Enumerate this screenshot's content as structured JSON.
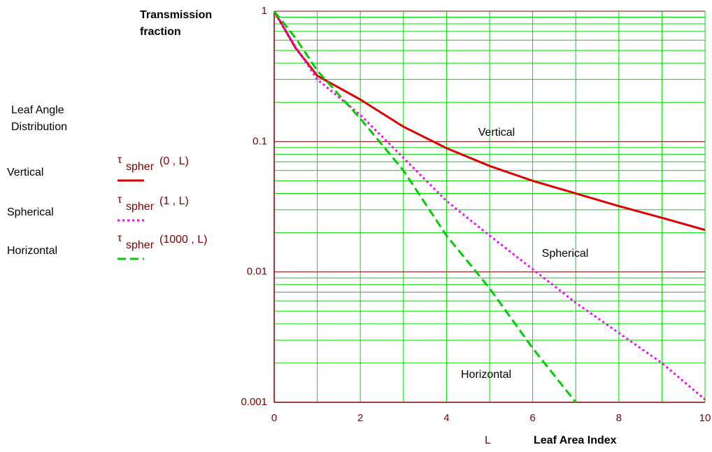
{
  "chart_data": {
    "type": "line",
    "y_label": [
      "Transmission",
      "fraction"
    ],
    "x_label": "Leaf Area Index",
    "x_variable": "L",
    "legend_title": [
      "Leaf Angle",
      "Distribution"
    ],
    "x": [
      0,
      0.5,
      1,
      2,
      3,
      4,
      5,
      6,
      7,
      8,
      9,
      10
    ],
    "series": [
      {
        "name": "Vertical",
        "color": "#e00000",
        "style": "solid",
        "legend_label": {
          "symbol": "τ",
          "sub": "spher",
          "args": "(0 , L)"
        },
        "values": [
          1,
          0.52,
          0.32,
          0.21,
          0.13,
          0.089,
          0.065,
          0.05,
          0.04,
          0.032,
          0.026,
          0.021
        ]
      },
      {
        "name": "Spherical",
        "color": "#ff00ff",
        "style": "dotted",
        "legend_label": {
          "symbol": "τ",
          "sub": "spher",
          "args": "(1 , L)"
        },
        "values": [
          1,
          0.53,
          0.3,
          0.16,
          0.075,
          0.035,
          0.019,
          0.0105,
          0.0058,
          0.0034,
          0.002,
          0.00105
        ]
      },
      {
        "name": "Horizontal",
        "color": "#00cc00",
        "style": "dashed",
        "legend_label": {
          "symbol": "τ",
          "sub": "spher",
          "args": "(1000 , L)"
        },
        "values": [
          1,
          0.62,
          0.35,
          0.15,
          0.06,
          0.019,
          0.0075,
          0.0026,
          0.001,
          null,
          null,
          null
        ]
      }
    ],
    "annotations": [
      "Vertical",
      "Spherical",
      "Horizontal"
    ],
    "xlim": [
      0,
      10
    ],
    "xticks": [
      0,
      2,
      4,
      6,
      8,
      10
    ],
    "ylim": [
      0.001,
      1
    ],
    "yticks": [
      0.001,
      0.01,
      0.1,
      1
    ],
    "log_y": true,
    "grid": true
  }
}
